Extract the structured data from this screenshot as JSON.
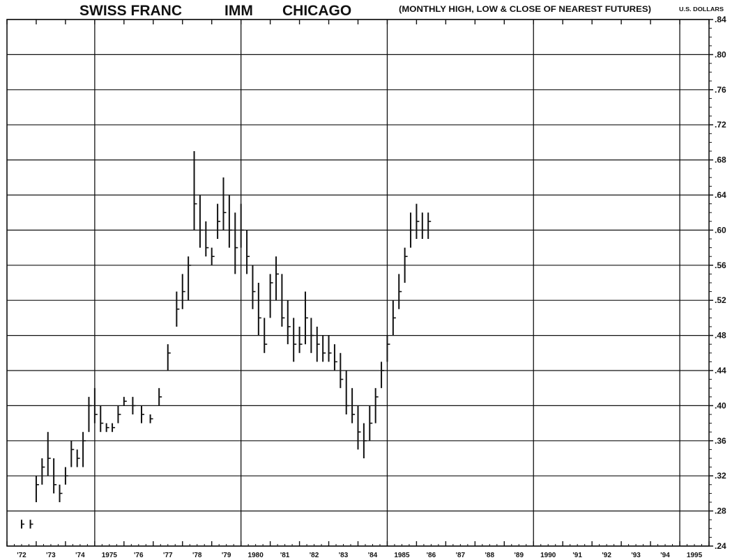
{
  "header": {
    "title_parts": [
      "SWISS FRANC",
      "IMM",
      "CHICAGO"
    ],
    "subtitle": "(MONTHLY HIGH, LOW & CLOSE OF NEAREST FUTURES)",
    "unit": "U.S. DOLLARS"
  },
  "colors": {
    "ink": "#111111",
    "background": "#ffffff"
  },
  "chart_data": {
    "type": "bar",
    "style": "monthly high-low-close bars",
    "title": "SWISS FRANC IMM CHICAGO",
    "subtitle": "(MONTHLY HIGH, LOW & CLOSE OF NEAREST FUTURES)",
    "ylabel": "U.S. DOLLARS",
    "ylim": [
      0.24,
      0.84
    ],
    "yticks": [
      ".24",
      ".28",
      ".32",
      ".36",
      ".40",
      ".44",
      ".48",
      ".52",
      ".56",
      ".60",
      ".64",
      ".68",
      ".72",
      ".76",
      ".80",
      ".84"
    ],
    "xlim": [
      1972,
      1996
    ],
    "xticks": [
      "'72",
      "'73",
      "'74",
      "1975",
      "'76",
      "'77",
      "'78",
      "'79",
      "1980",
      "'81",
      "'82",
      "'83",
      "'84",
      "1985",
      "'86",
      "'87",
      "'88",
      "'89",
      "1990",
      "'91",
      "'92",
      "'93",
      "'94",
      "1995"
    ],
    "grid": true,
    "major_vertical_gridlines": [
      1975,
      1980,
      1985,
      1990,
      1995
    ],
    "series": [
      {
        "x": [
          1972.5,
          1972.8,
          1973.0,
          1973.2,
          1973.4,
          1973.6,
          1973.8,
          1974.0,
          1974.2,
          1974.4,
          1974.6,
          1974.8,
          1975.0,
          1975.2,
          1975.4,
          1975.6,
          1975.8,
          1976.0,
          1976.3,
          1976.6,
          1976.9,
          1977.2,
          1977.5,
          1977.8,
          1978.0,
          1978.2,
          1978.4,
          1978.6,
          1978.8,
          1979.0,
          1979.2,
          1979.4,
          1979.6,
          1979.8,
          1980.0,
          1980.2,
          1980.4,
          1980.6,
          1980.8,
          1981.0,
          1981.2,
          1981.4,
          1981.6,
          1981.8,
          1982.0,
          1982.2,
          1982.4,
          1982.6,
          1982.8,
          1983.0,
          1983.2,
          1983.4,
          1983.6,
          1983.8,
          1984.0,
          1984.2,
          1984.4,
          1984.6,
          1984.8,
          1985.0,
          1985.2,
          1985.4,
          1985.6,
          1985.8,
          1986.0,
          1986.2,
          1986.4
        ],
        "high": [
          0.27,
          0.27,
          0.32,
          0.34,
          0.37,
          0.34,
          0.31,
          0.33,
          0.36,
          0.35,
          0.37,
          0.41,
          0.42,
          0.4,
          0.38,
          0.38,
          0.4,
          0.41,
          0.41,
          0.4,
          0.39,
          0.42,
          0.47,
          0.53,
          0.55,
          0.57,
          0.69,
          0.64,
          0.61,
          0.58,
          0.63,
          0.66,
          0.64,
          0.62,
          0.63,
          0.6,
          0.56,
          0.54,
          0.5,
          0.55,
          0.57,
          0.55,
          0.52,
          0.5,
          0.49,
          0.53,
          0.5,
          0.49,
          0.48,
          0.48,
          0.47,
          0.46,
          0.44,
          0.42,
          0.4,
          0.38,
          0.4,
          0.42,
          0.45,
          0.48,
          0.52,
          0.55,
          0.58,
          0.62,
          0.63,
          0.62,
          0.62
        ],
        "low": [
          0.26,
          0.26,
          0.29,
          0.31,
          0.32,
          0.3,
          0.29,
          0.31,
          0.33,
          0.33,
          0.33,
          0.37,
          0.38,
          0.37,
          0.37,
          0.37,
          0.38,
          0.4,
          0.39,
          0.38,
          0.38,
          0.4,
          0.44,
          0.49,
          0.51,
          0.52,
          0.6,
          0.58,
          0.57,
          0.56,
          0.59,
          0.6,
          0.58,
          0.55,
          0.58,
          0.55,
          0.51,
          0.48,
          0.46,
          0.5,
          0.52,
          0.49,
          0.47,
          0.45,
          0.46,
          0.47,
          0.46,
          0.45,
          0.45,
          0.45,
          0.44,
          0.42,
          0.39,
          0.38,
          0.35,
          0.34,
          0.36,
          0.38,
          0.42,
          0.45,
          0.48,
          0.51,
          0.54,
          0.58,
          0.59,
          0.59,
          0.59
        ],
        "close": [
          0.265,
          0.265,
          0.31,
          0.33,
          0.34,
          0.31,
          0.3,
          0.32,
          0.35,
          0.34,
          0.36,
          0.4,
          0.39,
          0.38,
          0.375,
          0.375,
          0.39,
          0.405,
          0.4,
          0.39,
          0.385,
          0.41,
          0.46,
          0.51,
          0.53,
          0.56,
          0.63,
          0.6,
          0.58,
          0.57,
          0.61,
          0.62,
          0.6,
          0.58,
          0.6,
          0.57,
          0.53,
          0.5,
          0.47,
          0.54,
          0.55,
          0.5,
          0.49,
          0.47,
          0.47,
          0.5,
          0.48,
          0.47,
          0.46,
          0.46,
          0.45,
          0.43,
          0.4,
          0.39,
          0.37,
          0.36,
          0.38,
          0.41,
          0.44,
          0.47,
          0.5,
          0.53,
          0.57,
          0.6,
          0.61,
          0.6,
          0.61
        ]
      }
    ]
  }
}
